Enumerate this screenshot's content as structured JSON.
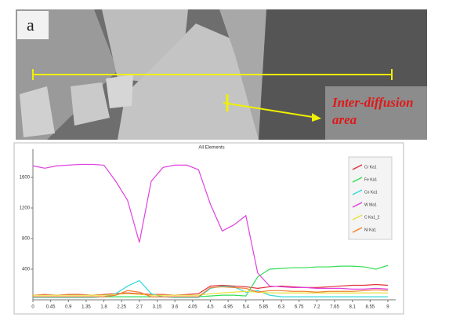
{
  "chart_data": {
    "type": "line",
    "panel_label": "a",
    "annotation_lines": [
      "Inter-diffusion",
      "area"
    ],
    "title": "All Elements",
    "x": [
      0,
      0.3,
      0.6,
      0.9,
      1.2,
      1.5,
      1.8,
      2.1,
      2.4,
      2.7,
      3.0,
      3.3,
      3.6,
      3.9,
      4.2,
      4.5,
      4.8,
      5.1,
      5.4,
      5.7,
      6.0,
      6.3,
      6.6,
      6.9,
      7.2,
      7.5,
      7.8,
      8.1,
      8.4,
      8.7,
      9.0
    ],
    "xlim": [
      0,
      9.2
    ],
    "xticks": [
      0,
      0.45,
      0.9,
      1.35,
      1.8,
      2.25,
      2.7,
      3.15,
      3.6,
      4.05,
      4.5,
      4.95,
      5.4,
      5.85,
      6.3,
      6.75,
      7.2,
      7.65,
      8.1,
      8.55,
      9
    ],
    "ylim": [
      0,
      2000
    ],
    "yticks": [
      400,
      800,
      1200,
      1600
    ],
    "series": [
      {
        "name": "Cr Ka1",
        "color": "#e0303a",
        "values": [
          60,
          70,
          60,
          70,
          70,
          60,
          70,
          80,
          90,
          80,
          70,
          70,
          60,
          70,
          80,
          180,
          190,
          180,
          170,
          150,
          170,
          180,
          170,
          160,
          160,
          170,
          180,
          190,
          190,
          200,
          190
        ]
      },
      {
        "name": "Fe Ka1",
        "color": "#33dd55",
        "values": [
          40,
          40,
          40,
          40,
          40,
          40,
          40,
          40,
          40,
          40,
          40,
          40,
          40,
          40,
          40,
          50,
          60,
          60,
          50,
          300,
          400,
          410,
          420,
          420,
          430,
          430,
          440,
          440,
          430,
          400,
          450
        ]
      },
      {
        "name": "Co Ka1",
        "color": "#33d8d8",
        "values": [
          30,
          30,
          30,
          30,
          30,
          30,
          40,
          80,
          180,
          250,
          80,
          40,
          30,
          30,
          30,
          150,
          180,
          170,
          100,
          120,
          60,
          40,
          40,
          40,
          40,
          40,
          40,
          40,
          40,
          40,
          40
        ]
      },
      {
        "name": "W Ma1",
        "color": "#e040e0",
        "values": [
          1750,
          1720,
          1750,
          1760,
          1770,
          1770,
          1760,
          1550,
          1300,
          750,
          1550,
          1730,
          1760,
          1760,
          1700,
          1250,
          900,
          980,
          1100,
          350,
          180,
          170,
          160,
          160,
          150,
          150,
          150,
          140,
          140,
          150,
          140
        ]
      },
      {
        "name": "C Ka1_2",
        "color": "#e8e040",
        "values": [
          60,
          60,
          60,
          60,
          60,
          60,
          60,
          70,
          80,
          70,
          60,
          60,
          60,
          60,
          60,
          80,
          90,
          100,
          110,
          100,
          90,
          90,
          90,
          90,
          90,
          90,
          90,
          90,
          90,
          90,
          90
        ]
      },
      {
        "name": "Ni Ka1",
        "color": "#f08030",
        "values": [
          40,
          40,
          40,
          40,
          40,
          40,
          40,
          60,
          120,
          100,
          40,
          40,
          40,
          40,
          40,
          160,
          170,
          160,
          150,
          100,
          120,
          120,
          110,
          110,
          100,
          110,
          110,
          110,
          120,
          130,
          120
        ]
      }
    ]
  }
}
